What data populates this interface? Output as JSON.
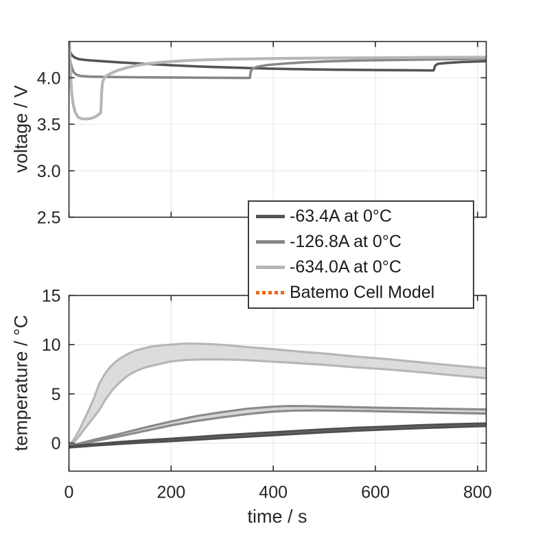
{
  "figure": {
    "background": "#ffffff",
    "axis_color": "#262626",
    "grid_color": "#e8e8e8",
    "text_color": "#262626",
    "tick_font_px": 25
  },
  "labels": {
    "top_ylabel": "voltage / V",
    "bottom_ylabel": "temperature / °C",
    "xlabel": "time / s"
  },
  "legend": {
    "items": [
      {
        "label": "-63.4A at 0°C",
        "color": "#545454",
        "line_style": "solid"
      },
      {
        "label": "-126.8A at 0°C",
        "color": "#868686",
        "line_style": "solid"
      },
      {
        "label": "-634.0A at 0°C",
        "color": "#b6b6b6",
        "line_style": "solid"
      },
      {
        "label": "Batemo Cell Model",
        "color": "#e8691a",
        "line_style": "dotted"
      }
    ]
  },
  "chart_data": [
    {
      "type": "line",
      "name": "voltage-axes",
      "title": "",
      "xlabel": "",
      "ylabel": "voltage / V",
      "xlim": [
        0,
        817
      ],
      "ylim": [
        2.5,
        4.39
      ],
      "xticks": [
        0,
        200,
        400,
        600,
        800
      ],
      "xticklabels": [
        "",
        "",
        "",
        "",
        ""
      ],
      "yticks": [
        2.5,
        3.0,
        3.5,
        4.0
      ],
      "yticklabels": [
        "2.5",
        "3.0",
        "3.5",
        "4.0"
      ],
      "grid": true,
      "series": [
        {
          "name": "-63.4A at 0°C",
          "color": "#545454",
          "width": 3.6,
          "x": [
            0,
            2,
            6,
            12,
            20,
            35,
            60,
            100,
            150,
            200,
            260,
            320,
            380,
            450,
            520,
            600,
            660,
            710,
            714,
            717,
            722,
            740,
            770,
            800,
            817
          ],
          "y": [
            4.34,
            4.28,
            4.24,
            4.215,
            4.2,
            4.19,
            4.18,
            4.165,
            4.15,
            4.135,
            4.12,
            4.11,
            4.1,
            4.092,
            4.087,
            4.083,
            4.081,
            4.079,
            4.079,
            4.13,
            4.15,
            4.16,
            4.17,
            4.175,
            4.178
          ]
        },
        {
          "name": "-126.8A at 0°C",
          "color": "#868686",
          "width": 3.6,
          "x": [
            0,
            2,
            5,
            9,
            14,
            22,
            40,
            70,
            120,
            200,
            280,
            350,
            354,
            356,
            360,
            370,
            390,
            420,
            460,
            510,
            570,
            640,
            720,
            817
          ],
          "y": [
            4.33,
            4.2,
            4.12,
            4.06,
            4.035,
            4.02,
            4.013,
            4.009,
            4.006,
            4.003,
            4.0,
            3.998,
            3.998,
            4.07,
            4.1,
            4.12,
            4.138,
            4.152,
            4.166,
            4.177,
            4.186,
            4.192,
            4.198,
            4.204
          ]
        },
        {
          "name": "-634.0A at 0°C",
          "color": "#b6b6b6",
          "width": 4.2,
          "x": [
            1,
            1.5,
            3,
            5,
            8,
            12,
            18,
            26,
            34,
            42,
            50,
            56,
            60,
            62,
            63,
            64,
            66,
            70,
            76,
            85,
            97,
            112,
            130,
            152,
            175,
            200,
            230,
            265,
            305,
            360,
            430,
            520,
            620,
            720,
            817
          ],
          "y": [
            4.39,
            4.3,
            4.05,
            3.86,
            3.72,
            3.63,
            3.575,
            3.558,
            3.557,
            3.562,
            3.575,
            3.595,
            3.615,
            3.62,
            3.7,
            3.85,
            3.96,
            4.005,
            4.03,
            4.055,
            4.082,
            4.107,
            4.13,
            4.15,
            4.163,
            4.175,
            4.185,
            4.193,
            4.199,
            4.204,
            4.209,
            4.213,
            4.216,
            4.219,
            4.221
          ]
        }
      ]
    },
    {
      "type": "area",
      "name": "temperature-axes",
      "title": "",
      "xlabel": "time / s",
      "ylabel": "temperature / °C",
      "xlim": [
        0,
        817
      ],
      "ylim": [
        -2.85,
        15
      ],
      "xticks": [
        0,
        200,
        400,
        600,
        800
      ],
      "xticklabels": [
        "0",
        "200",
        "400",
        "600",
        "800"
      ],
      "yticks": [
        0,
        5,
        10,
        15
      ],
      "yticklabels": [
        "0",
        "5",
        "10",
        "15"
      ],
      "grid": true,
      "bands": [
        {
          "name": "-634.0A at 0°C",
          "edge_color": "#b6b6b6",
          "fill_color": "#dcdcdc",
          "upper": {
            "x": [
              0,
              10,
              20,
              30,
              40,
              50,
              59,
              70,
              80,
              90,
              100,
              115,
              130,
              145,
              160,
              180,
              200,
              225,
              250,
              280,
              310,
              350,
              400,
              450,
              500,
              560,
              620,
              690,
              750,
              817
            ],
            "y": [
              -0.3,
              0.4,
              1.3,
              2.4,
              3.5,
              4.7,
              6.0,
              7.0,
              7.7,
              8.2,
              8.6,
              9.05,
              9.4,
              9.6,
              9.8,
              9.93,
              10.0,
              10.1,
              10.1,
              10.05,
              9.95,
              9.75,
              9.55,
              9.3,
              9.1,
              8.8,
              8.55,
              8.2,
              7.9,
              7.6
            ]
          },
          "lower": {
            "x": [
              0,
              10,
              20,
              30,
              45,
              60,
              70,
              85,
              100,
              115,
              130,
              150,
              170,
              200,
              230,
              260,
              300,
              340,
              390,
              440,
              500,
              560,
              620,
              690,
              750,
              817
            ],
            "y": [
              -0.35,
              0.1,
              0.7,
              1.4,
              2.4,
              3.4,
              4.3,
              5.4,
              6.2,
              6.85,
              7.3,
              7.7,
              7.95,
              8.3,
              8.45,
              8.5,
              8.5,
              8.45,
              8.3,
              8.15,
              7.95,
              7.7,
              7.5,
              7.2,
              6.9,
              6.6
            ]
          }
        },
        {
          "name": "-126.8A at 0°C",
          "edge_color": "#8a8a8a",
          "fill_color": "#d6d6d6",
          "upper": {
            "x": [
              0,
              50,
              100,
              150,
              200,
              250,
              300,
              350,
              400,
              430,
              460,
              500,
              550,
              600,
              660,
              720,
              817
            ],
            "y": [
              -0.3,
              0.35,
              0.95,
              1.6,
              2.2,
              2.75,
              3.15,
              3.5,
              3.7,
              3.77,
              3.76,
              3.72,
              3.66,
              3.6,
              3.55,
              3.5,
              3.42
            ]
          },
          "lower": {
            "x": [
              0,
              50,
              100,
              150,
              200,
              250,
              300,
              350,
              400,
              440,
              480,
              530,
              590,
              650,
              720,
              817
            ],
            "y": [
              -0.4,
              0.2,
              0.7,
              1.25,
              1.8,
              2.25,
              2.62,
              2.95,
              3.2,
              3.3,
              3.32,
              3.3,
              3.25,
              3.18,
              3.1,
              3.0
            ]
          }
        },
        {
          "name": "-63.4A at 0°C",
          "edge_color": "#4f4f4f",
          "fill_color": "#6f6f6f",
          "upper": {
            "x": [
              0,
              50,
              100,
              150,
              200,
              250,
              300,
              350,
              400,
              450,
              500,
              560,
              620,
              690,
              750,
              817
            ],
            "y": [
              -0.3,
              -0.1,
              0.12,
              0.3,
              0.45,
              0.62,
              0.8,
              0.95,
              1.1,
              1.25,
              1.4,
              1.55,
              1.67,
              1.82,
              1.92,
              2.0
            ]
          },
          "lower": {
            "x": [
              0,
              50,
              100,
              150,
              200,
              250,
              300,
              350,
              400,
              450,
              500,
              560,
              620,
              690,
              750,
              817
            ],
            "y": [
              -0.45,
              -0.25,
              -0.08,
              0.07,
              0.2,
              0.35,
              0.5,
              0.65,
              0.8,
              0.95,
              1.1,
              1.25,
              1.38,
              1.52,
              1.63,
              1.73
            ]
          }
        }
      ]
    }
  ]
}
